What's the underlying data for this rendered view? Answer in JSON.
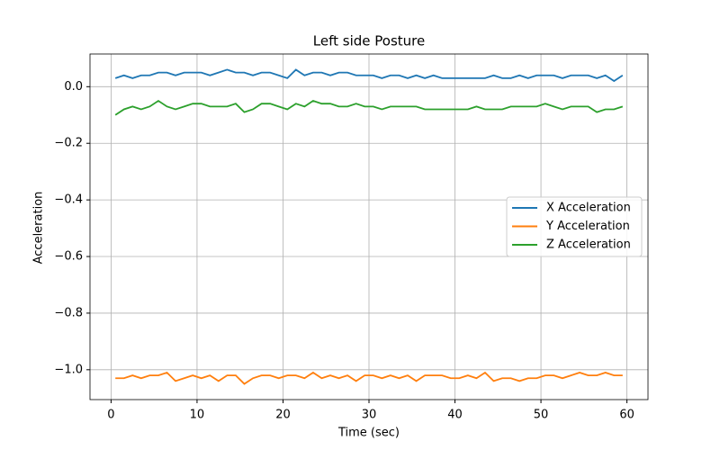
{
  "chart_data": {
    "type": "line",
    "title": "Left side Posture",
    "xlabel": "Time (sec)",
    "ylabel": "Acceleration",
    "x": [
      0.5,
      1.5,
      2.5,
      3.5,
      4.5,
      5.5,
      6.5,
      7.5,
      8.5,
      9.5,
      10.5,
      11.5,
      12.5,
      13.5,
      14.5,
      15.5,
      16.5,
      17.5,
      18.5,
      19.5,
      20.5,
      21.5,
      22.5,
      23.5,
      24.5,
      25.5,
      26.5,
      27.5,
      28.5,
      29.5,
      30.5,
      31.5,
      32.5,
      33.5,
      34.5,
      35.5,
      36.5,
      37.5,
      38.5,
      39.5,
      40.5,
      41.5,
      42.5,
      43.5,
      44.5,
      45.5,
      46.5,
      47.5,
      48.5,
      49.5,
      50.5,
      51.5,
      52.5,
      53.5,
      54.5,
      55.5,
      56.5,
      57.5,
      58.5,
      59.5
    ],
    "series": [
      {
        "name": "X Acceleration",
        "color": "#1f77b4",
        "values": [
          0.03,
          0.04,
          0.03,
          0.04,
          0.04,
          0.05,
          0.05,
          0.04,
          0.05,
          0.05,
          0.05,
          0.04,
          0.05,
          0.06,
          0.05,
          0.05,
          0.04,
          0.05,
          0.05,
          0.04,
          0.03,
          0.06,
          0.04,
          0.05,
          0.05,
          0.04,
          0.05,
          0.05,
          0.04,
          0.04,
          0.04,
          0.03,
          0.04,
          0.04,
          0.03,
          0.04,
          0.03,
          0.04,
          0.03,
          0.03,
          0.03,
          0.03,
          0.03,
          0.03,
          0.04,
          0.03,
          0.03,
          0.04,
          0.03,
          0.04,
          0.04,
          0.04,
          0.03,
          0.04,
          0.04,
          0.04,
          0.03,
          0.04,
          0.02,
          0.04
        ]
      },
      {
        "name": "Y Acceleration",
        "color": "#ff7f0e",
        "values": [
          -1.03,
          -1.03,
          -1.02,
          -1.03,
          -1.02,
          -1.02,
          -1.01,
          -1.04,
          -1.03,
          -1.02,
          -1.03,
          -1.02,
          -1.04,
          -1.02,
          -1.02,
          -1.05,
          -1.03,
          -1.02,
          -1.02,
          -1.03,
          -1.02,
          -1.02,
          -1.03,
          -1.01,
          -1.03,
          -1.02,
          -1.03,
          -1.02,
          -1.04,
          -1.02,
          -1.02,
          -1.03,
          -1.02,
          -1.03,
          -1.02,
          -1.04,
          -1.02,
          -1.02,
          -1.02,
          -1.03,
          -1.03,
          -1.02,
          -1.03,
          -1.01,
          -1.04,
          -1.03,
          -1.03,
          -1.04,
          -1.03,
          -1.03,
          -1.02,
          -1.02,
          -1.03,
          -1.02,
          -1.01,
          -1.02,
          -1.02,
          -1.01,
          -1.02,
          -1.02
        ]
      },
      {
        "name": "Z Acceleration",
        "color": "#2ca02c",
        "values": [
          -0.1,
          -0.08,
          -0.07,
          -0.08,
          -0.07,
          -0.05,
          -0.07,
          -0.08,
          -0.07,
          -0.06,
          -0.06,
          -0.07,
          -0.07,
          -0.07,
          -0.06,
          -0.09,
          -0.08,
          -0.06,
          -0.06,
          -0.07,
          -0.08,
          -0.06,
          -0.07,
          -0.05,
          -0.06,
          -0.06,
          -0.07,
          -0.07,
          -0.06,
          -0.07,
          -0.07,
          -0.08,
          -0.07,
          -0.07,
          -0.07,
          -0.07,
          -0.08,
          -0.08,
          -0.08,
          -0.08,
          -0.08,
          -0.08,
          -0.07,
          -0.08,
          -0.08,
          -0.08,
          -0.07,
          -0.07,
          -0.07,
          -0.07,
          -0.06,
          -0.07,
          -0.08,
          -0.07,
          -0.07,
          -0.07,
          -0.09,
          -0.08,
          -0.08,
          -0.07
        ]
      }
    ],
    "xlim": [
      -2.45,
      62.45
    ],
    "xticks": [
      0,
      10,
      20,
      30,
      40,
      50,
      60
    ],
    "ylim": [
      -1.1055,
      0.1155
    ],
    "yticks": [
      {
        "value": -1.0,
        "label": "−1.0"
      },
      {
        "value": -0.8,
        "label": "−0.8"
      },
      {
        "value": -0.6,
        "label": "−0.6"
      },
      {
        "value": -0.4,
        "label": "−0.4"
      },
      {
        "value": -0.2,
        "label": "−0.2"
      },
      {
        "value": 0.0,
        "label": "0.0"
      }
    ],
    "grid": true,
    "legend_loc": "center right"
  }
}
